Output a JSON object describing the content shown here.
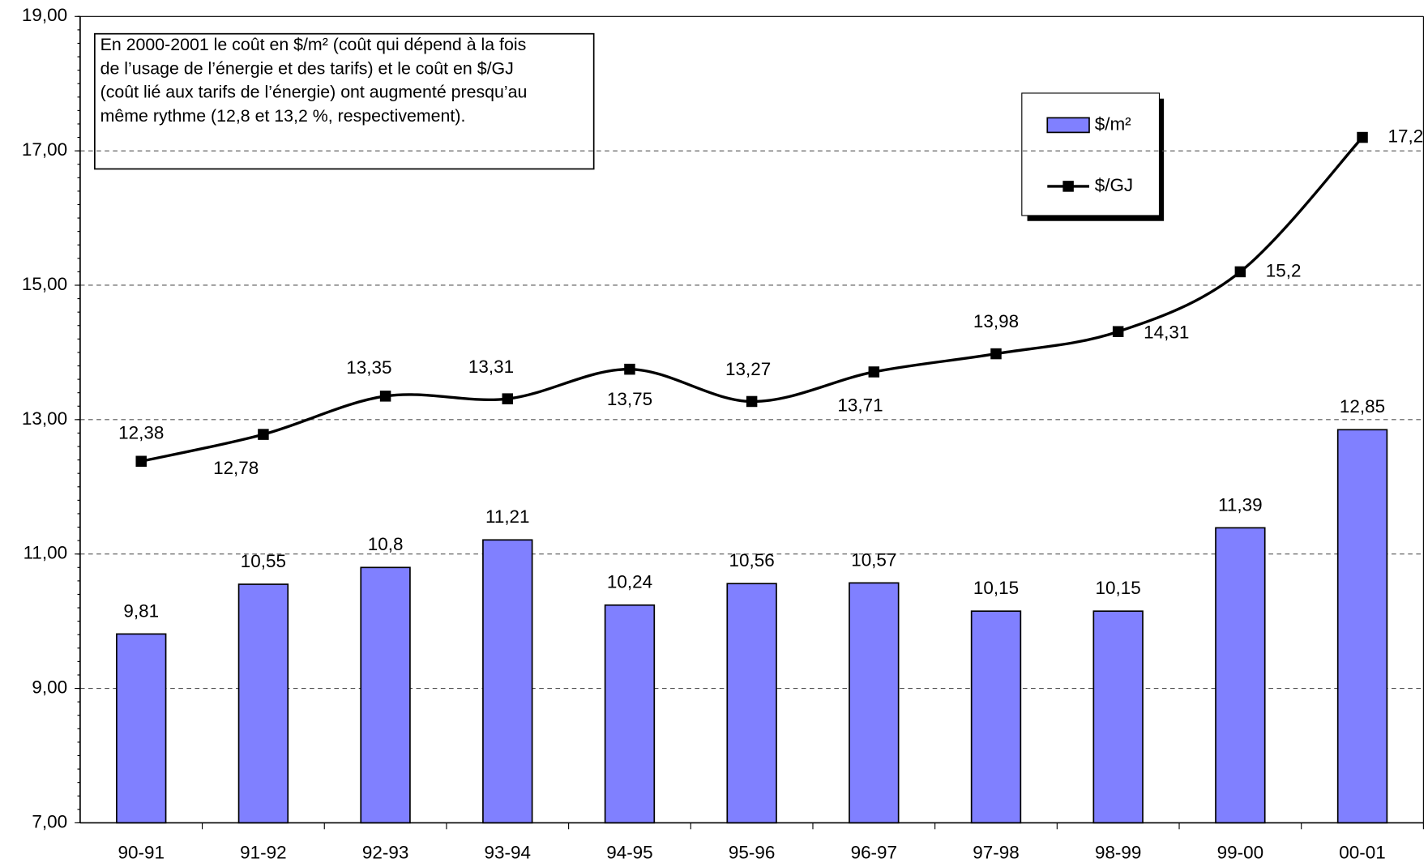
{
  "chart_data": {
    "type": "bar_line",
    "annotation": [
      "En 2000-2001 le coût en $/m² (coût qui dépend à la fois",
      "de l’usage de l’énergie et des tarifs) et le coût en $/GJ",
      "(coût lié aux tarifs de l’énergie) ont augmenté presqu’au",
      "même rythme (12,8 et 13,2 %, respectivement)."
    ],
    "categories": [
      "90-91",
      "91-92",
      "92-93",
      "93-94",
      "94-95",
      "95-96",
      "96-97",
      "97-98",
      "98-99",
      "99-00",
      "00-01"
    ],
    "series": [
      {
        "name": "$/m²",
        "type": "bar",
        "color": "#8080ff",
        "values": [
          9.81,
          10.55,
          10.8,
          11.21,
          10.24,
          10.56,
          10.57,
          10.15,
          10.15,
          11.39,
          12.85
        ],
        "value_labels": [
          "9,81",
          "10,55",
          "10,8",
          "11,21",
          "10,24",
          "10,56",
          "10,57",
          "10,15",
          "10,15",
          "11,39",
          "12,85"
        ]
      },
      {
        "name": "$/GJ",
        "type": "line",
        "color": "#000000",
        "values": [
          12.38,
          12.78,
          13.35,
          13.31,
          13.75,
          13.27,
          13.71,
          13.98,
          14.31,
          15.2,
          17.2
        ],
        "value_labels": [
          "12,38",
          "12,78",
          "13,35",
          "13,31",
          "13,75",
          "13,27",
          "13,71",
          "13,98",
          "14,31",
          "15,2",
          "17,2"
        ]
      }
    ],
    "ylim": [
      7,
      19
    ],
    "yticks": [
      {
        "value": 7,
        "label": "7,00"
      },
      {
        "value": 9,
        "label": "9,00"
      },
      {
        "value": 11,
        "label": "11,00"
      },
      {
        "value": 13,
        "label": "13,00"
      },
      {
        "value": 15,
        "label": "15,00"
      },
      {
        "value": 17,
        "label": "17,00"
      },
      {
        "value": 19,
        "label": "19,00"
      }
    ],
    "grid": true
  }
}
